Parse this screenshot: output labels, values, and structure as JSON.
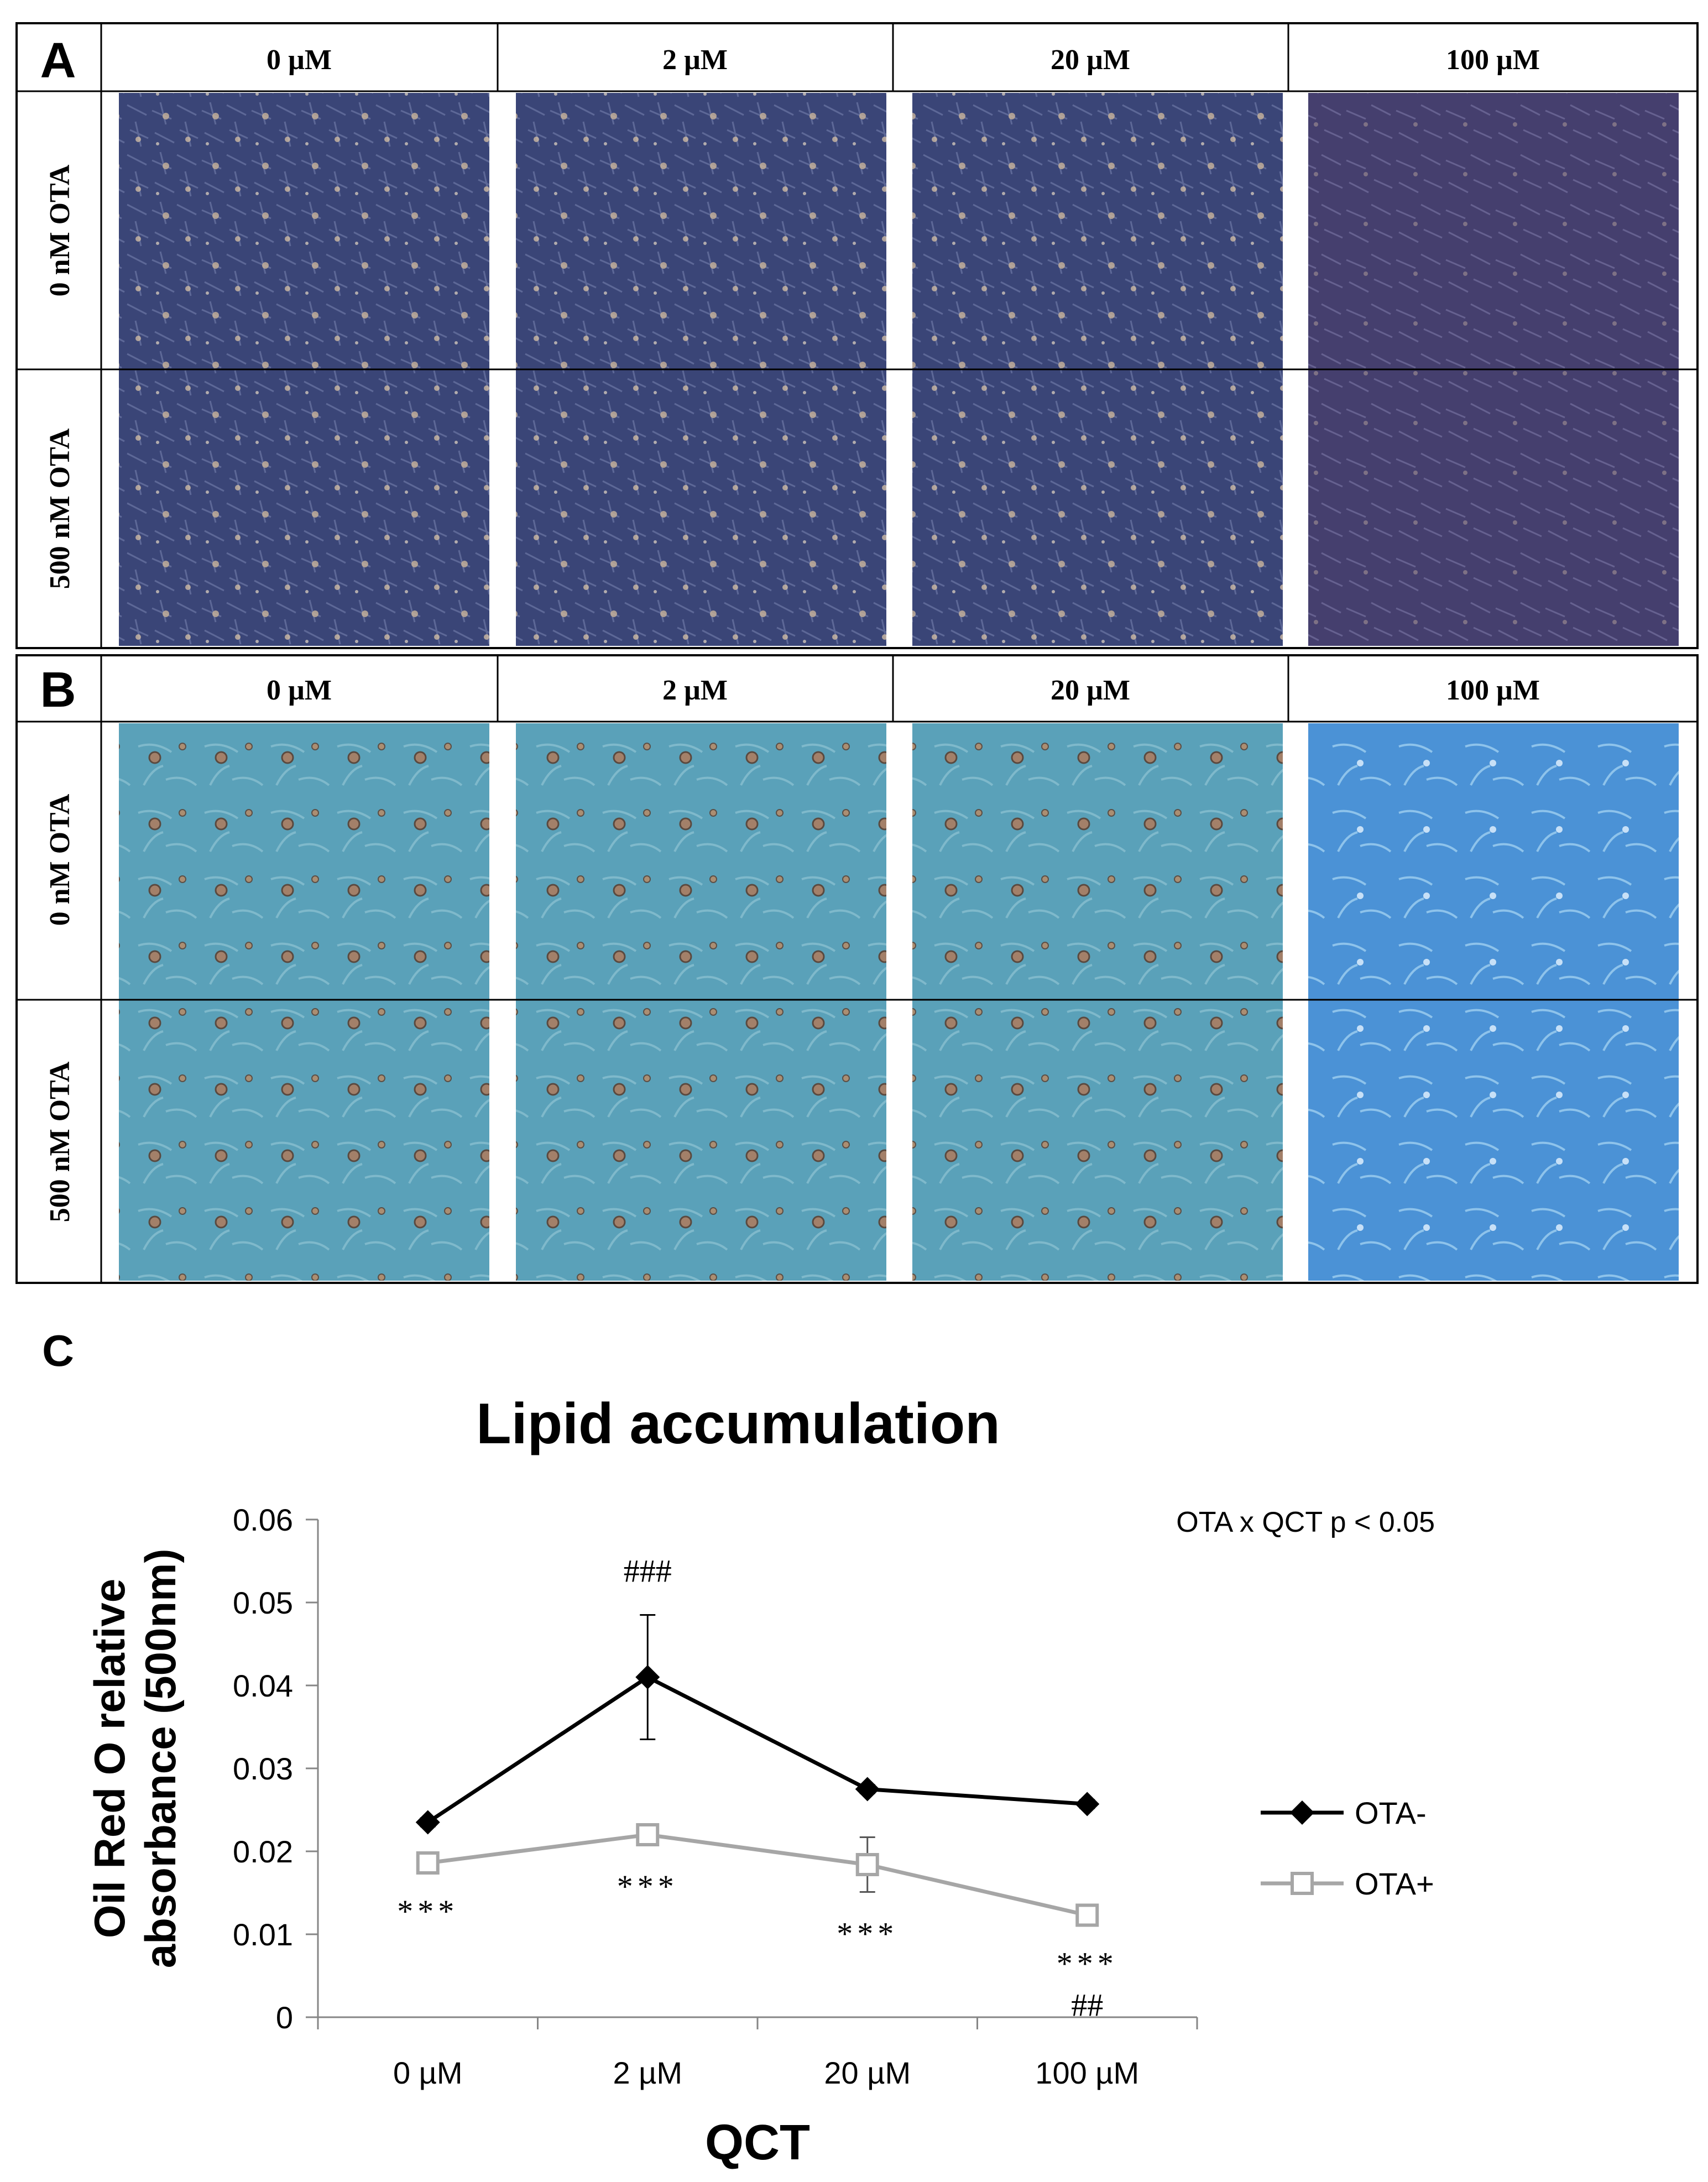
{
  "panel_a": {
    "letter": "A",
    "columns": [
      "0 µM",
      "2 µM",
      "20 µM",
      "100 µM"
    ],
    "rows": [
      "0 nM OTA",
      "500 nM OTA"
    ]
  },
  "panel_b": {
    "letter": "B",
    "columns": [
      "0 µM",
      "2 µM",
      "20 µM",
      "100 µM"
    ],
    "rows": [
      "0 nM OTA",
      "500 nM OTA"
    ]
  },
  "panel_c": {
    "letter": "C"
  },
  "colors": {
    "panel_a_micrograph": "#3a4577",
    "panel_b_micrograph_blue": "#5aa1b9",
    "panel_b_micrograph_light": "#4b92d6",
    "ota_minus": "#000000",
    "ota_plus": "#a6a6a6"
  },
  "chart_data": {
    "type": "line",
    "title": "Lipid accumulation",
    "xlabel": "QCT",
    "ylabel": "Oil Red O relative absorbance (500nm)",
    "categories": [
      "0 µM",
      "2 µM",
      "20 µM",
      "100 µM"
    ],
    "ylim": [
      0,
      0.06
    ],
    "yticks": [
      0,
      0.01,
      0.02,
      0.03,
      0.04,
      0.05,
      0.06
    ],
    "ytick_labels": [
      "0",
      "0.01",
      "0.02",
      "0.03",
      "0.04",
      "0.05",
      "0.06"
    ],
    "grid": false,
    "legend_position": "right",
    "annotation": "OTA x QCT  p < 0.05",
    "series": [
      {
        "name": "OTA-",
        "marker": "filled-diamond",
        "values": [
          0.0235,
          0.041,
          0.0275,
          0.0257
        ],
        "errors": [
          0.0005,
          0.0075,
          0.0005,
          0.0005
        ]
      },
      {
        "name": "OTA+",
        "marker": "open-square",
        "values": [
          0.0186,
          0.022,
          0.0184,
          0.0123
        ],
        "errors": [
          0.0008,
          0.0012,
          0.0033,
          0.0008
        ]
      }
    ],
    "significance_top": [
      "",
      "###",
      "",
      ""
    ],
    "significance_bottom": [
      "***",
      "***",
      "***",
      "***"
    ],
    "significance_bottom2": [
      "",
      "",
      "",
      "##"
    ]
  }
}
